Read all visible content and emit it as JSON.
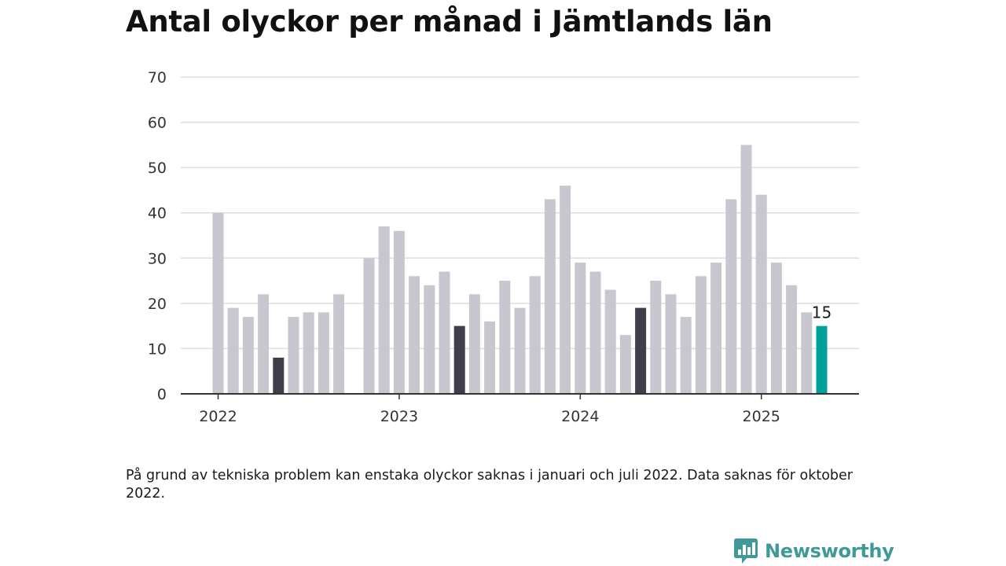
{
  "title": "Antal olyckor per månad i Jämtlands län",
  "note": "På grund av tekniska problem kan enstaka olyckor saknas i januari och juli 2022. Data saknas för oktober 2022.",
  "brand": {
    "name": "Newsworthy",
    "icon": "newsworthy-logo-icon"
  },
  "colors": {
    "bar_default": "#c8c7cf",
    "bar_highlight": "#3f3e4b",
    "bar_current": "#00a199",
    "grid": "#dedede",
    "axis": "#333333",
    "brand": "#3f9a97"
  },
  "chart_data": {
    "type": "bar",
    "title": "Antal olyckor per månad i Jämtlands län",
    "xlabel": "",
    "ylabel": "",
    "ylim": [
      0,
      70
    ],
    "yticks": [
      0,
      10,
      20,
      30,
      40,
      50,
      60,
      70
    ],
    "xticks": [
      "2022",
      "2023",
      "2024",
      "2025"
    ],
    "grid": true,
    "categories": [
      "2022-01",
      "2022-02",
      "2022-03",
      "2022-04",
      "2022-05",
      "2022-06",
      "2022-07",
      "2022-08",
      "2022-09",
      "2022-10",
      "2022-11",
      "2022-12",
      "2023-01",
      "2023-02",
      "2023-03",
      "2023-04",
      "2023-05",
      "2023-06",
      "2023-07",
      "2023-08",
      "2023-09",
      "2023-10",
      "2023-11",
      "2023-12",
      "2024-01",
      "2024-02",
      "2024-03",
      "2024-04",
      "2024-05",
      "2024-06",
      "2024-07",
      "2024-08",
      "2024-09",
      "2024-10",
      "2024-11",
      "2024-12",
      "2025-01",
      "2025-02",
      "2025-03",
      "2025-04",
      "2025-05"
    ],
    "values": [
      40,
      19,
      17,
      22,
      8,
      17,
      18,
      18,
      22,
      null,
      30,
      37,
      36,
      26,
      24,
      27,
      15,
      22,
      16,
      25,
      19,
      26,
      43,
      46,
      29,
      27,
      23,
      13,
      19,
      25,
      22,
      17,
      26,
      29,
      43,
      55,
      44,
      29,
      24,
      18,
      15
    ],
    "highlight": [
      "2022-05",
      "2023-05",
      "2024-05"
    ],
    "current": "2025-05",
    "data_labels": [
      {
        "category": "2025-05",
        "text": "15"
      }
    ]
  }
}
